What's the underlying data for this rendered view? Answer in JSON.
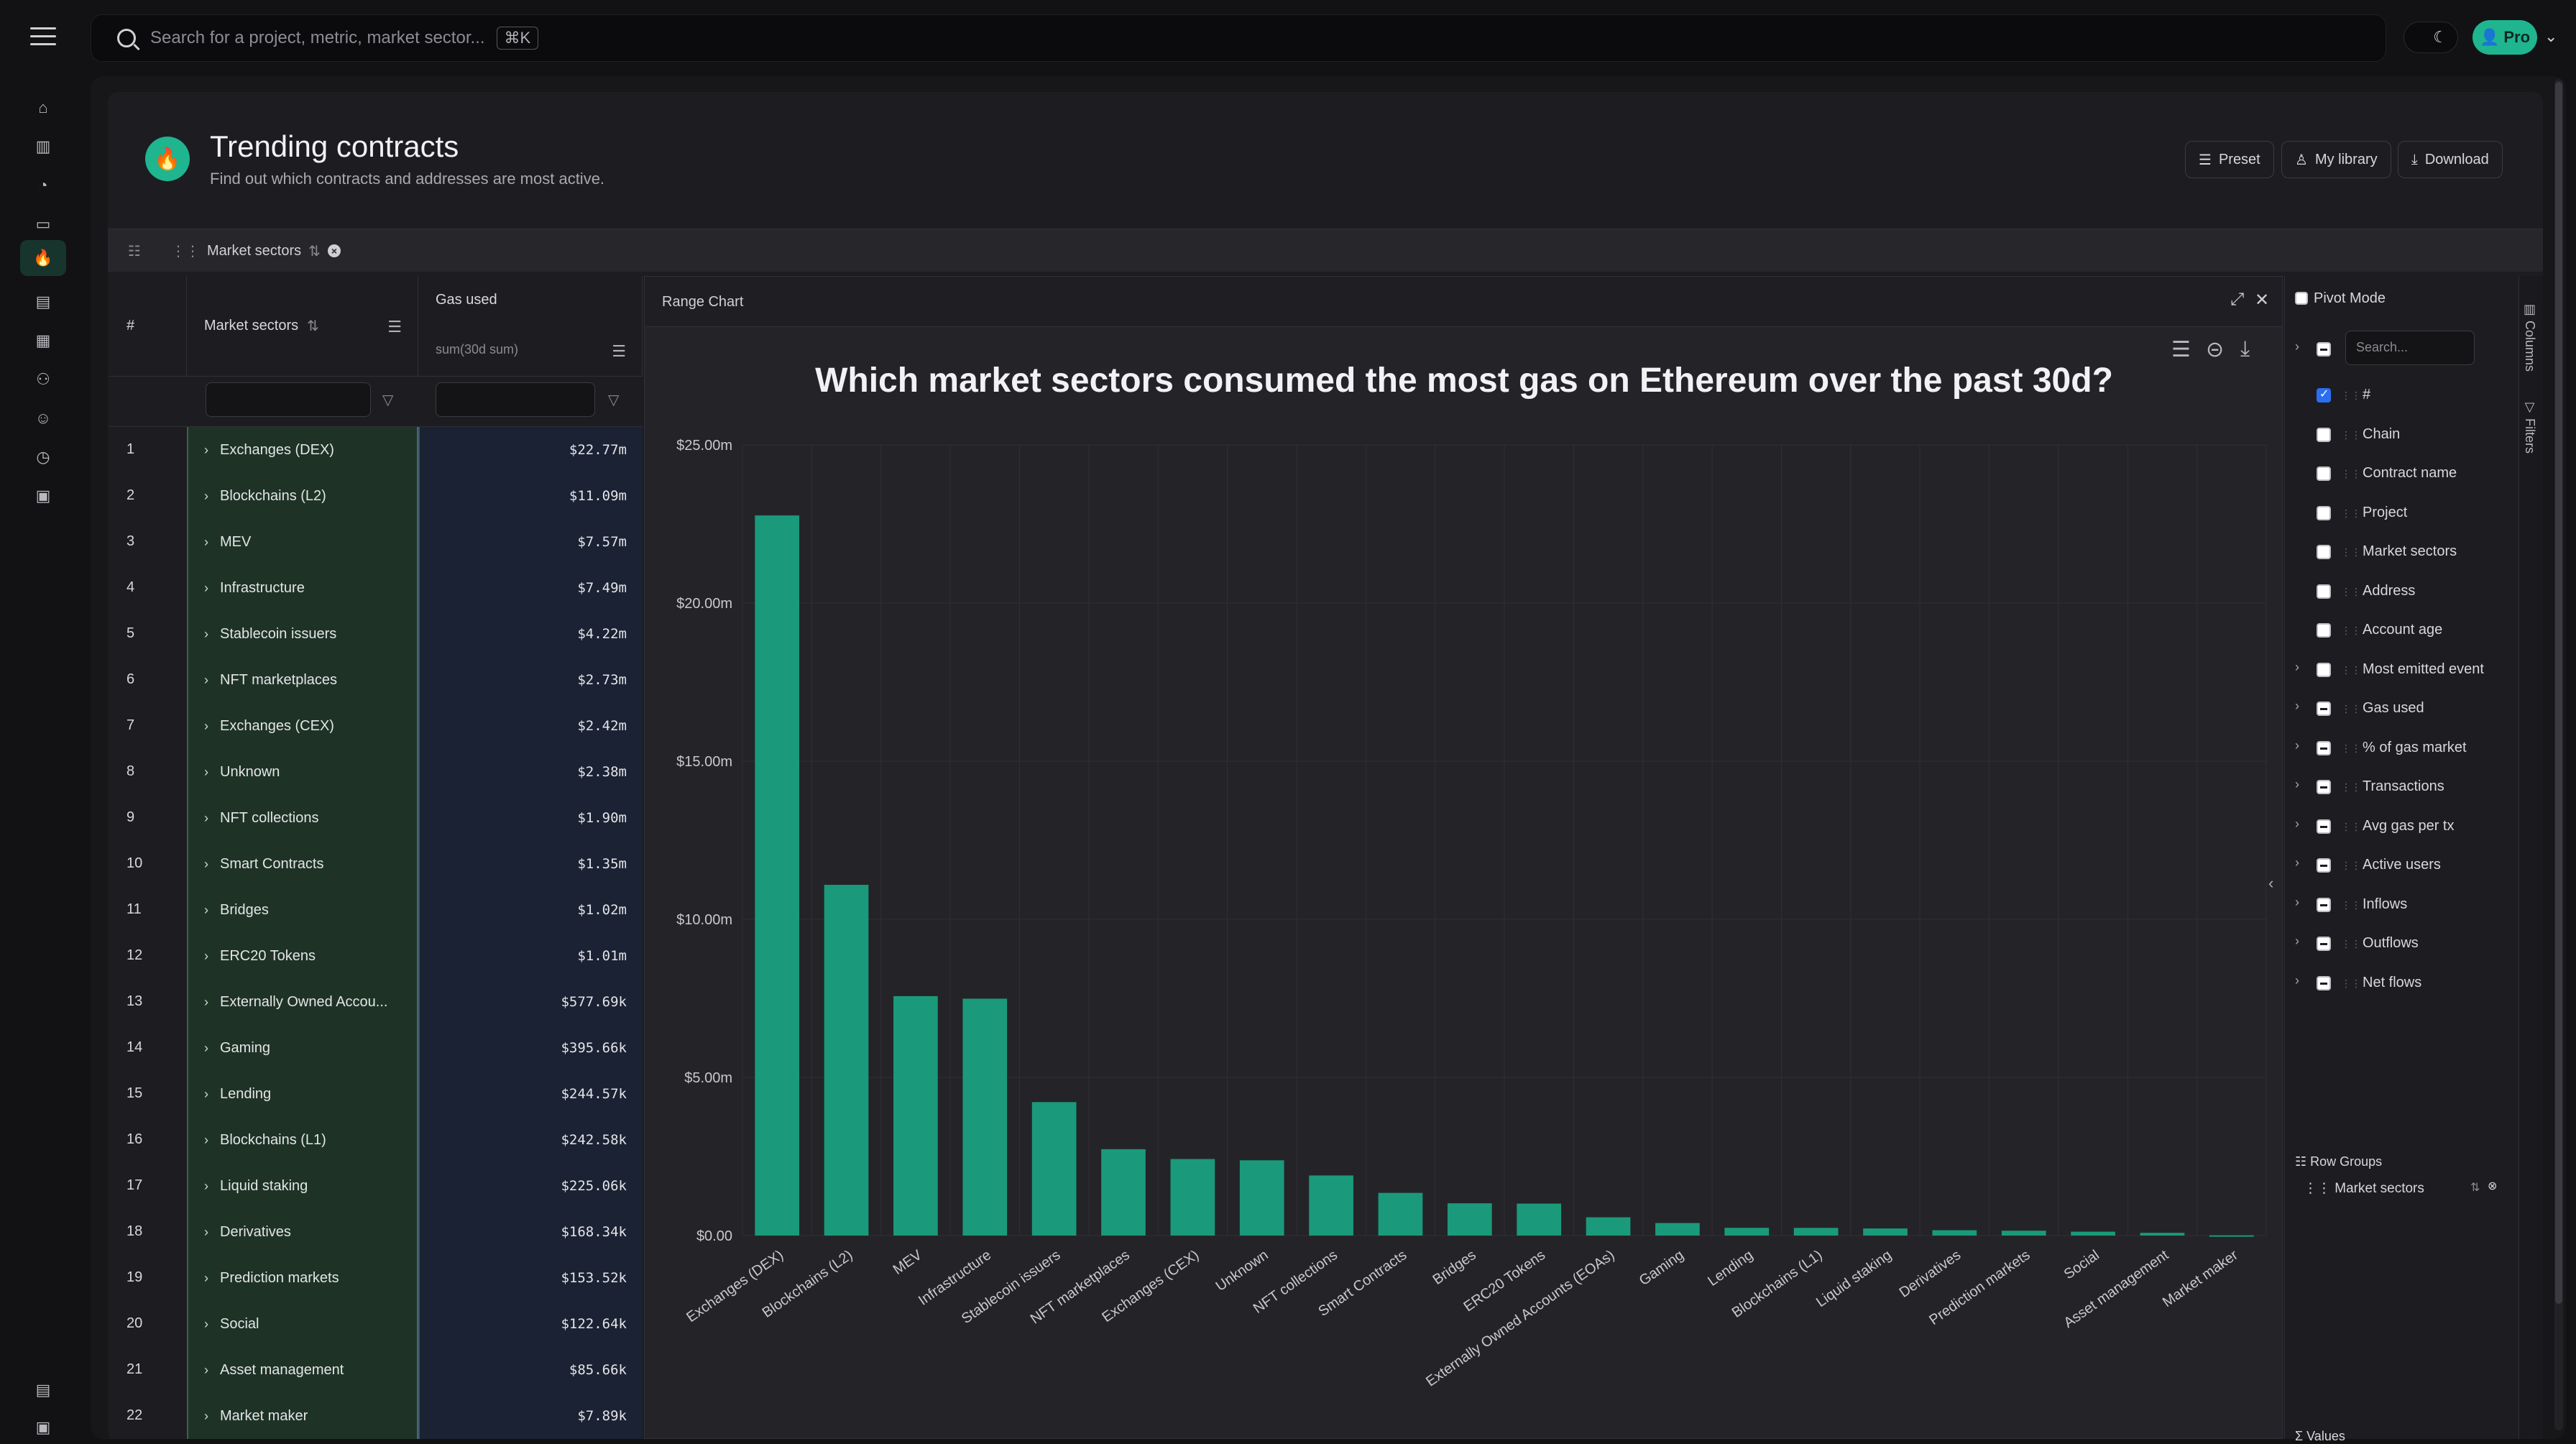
{
  "search": {
    "placeholder": "Search for a project, metric, market sector...",
    "shortcut": "⌘K"
  },
  "user": {
    "plan": "Pro"
  },
  "nav_icons": [
    "home-icon",
    "bar-chart-icon",
    "pie-chart-icon",
    "folder-icon",
    "flame-icon",
    "document-icon",
    "table-icon",
    "users-icon",
    "user-icon",
    "gauge-icon",
    "money-icon"
  ],
  "header": {
    "title": "Trending contracts",
    "subtitle": "Find out which contracts and addresses are most active.",
    "buttons": {
      "preset": "Preset",
      "library": "My library",
      "download": "Download"
    }
  },
  "grouping": {
    "chip": "Market sectors"
  },
  "table": {
    "col_num": "#",
    "col_sector": "Market sectors",
    "col_gas": "Gas used",
    "col_gas_agg": "sum(30d sum)",
    "rows": [
      {
        "n": "1",
        "sector": "Exchanges (DEX)",
        "gas": "$22.77m"
      },
      {
        "n": "2",
        "sector": "Blockchains (L2)",
        "gas": "$11.09m"
      },
      {
        "n": "3",
        "sector": "MEV",
        "gas": "$7.57m"
      },
      {
        "n": "4",
        "sector": "Infrastructure",
        "gas": "$7.49m"
      },
      {
        "n": "5",
        "sector": "Stablecoin issuers",
        "gas": "$4.22m"
      },
      {
        "n": "6",
        "sector": "NFT marketplaces",
        "gas": "$2.73m"
      },
      {
        "n": "7",
        "sector": "Exchanges (CEX)",
        "gas": "$2.42m"
      },
      {
        "n": "8",
        "sector": "Unknown",
        "gas": "$2.38m"
      },
      {
        "n": "9",
        "sector": "NFT collections",
        "gas": "$1.90m"
      },
      {
        "n": "10",
        "sector": "Smart Contracts",
        "gas": "$1.35m"
      },
      {
        "n": "11",
        "sector": "Bridges",
        "gas": "$1.02m"
      },
      {
        "n": "12",
        "sector": "ERC20 Tokens",
        "gas": "$1.01m"
      },
      {
        "n": "13",
        "sector": "Externally Owned Accou...",
        "gas": "$577.69k"
      },
      {
        "n": "14",
        "sector": "Gaming",
        "gas": "$395.66k"
      },
      {
        "n": "15",
        "sector": "Lending",
        "gas": "$244.57k"
      },
      {
        "n": "16",
        "sector": "Blockchains (L1)",
        "gas": "$242.58k"
      },
      {
        "n": "17",
        "sector": "Liquid staking",
        "gas": "$225.06k"
      },
      {
        "n": "18",
        "sector": "Derivatives",
        "gas": "$168.34k"
      },
      {
        "n": "19",
        "sector": "Prediction markets",
        "gas": "$153.52k"
      },
      {
        "n": "20",
        "sector": "Social",
        "gas": "$122.64k"
      },
      {
        "n": "21",
        "sector": "Asset management",
        "gas": "$85.66k"
      },
      {
        "n": "22",
        "sector": "Market maker",
        "gas": "$7.89k"
      }
    ]
  },
  "chart_panel": {
    "label": "Range Chart"
  },
  "chart_data": {
    "type": "bar",
    "title": "Which market sectors consumed the most gas on Ethereum over the past 30d?",
    "categories": [
      "Exchanges (DEX)",
      "Blockchains (L2)",
      "MEV",
      "Infrastructure",
      "Stablecoin issuers",
      "NFT marketplaces",
      "Exchanges (CEX)",
      "Unknown",
      "NFT collections",
      "Smart Contracts",
      "Bridges",
      "ERC20 Tokens",
      "Externally Owned Accounts (EOAs)",
      "Gaming",
      "Lending",
      "Blockchains (L1)",
      "Liquid staking",
      "Derivatives",
      "Prediction markets",
      "Social",
      "Asset management",
      "Market maker"
    ],
    "values": [
      22.77,
      11.09,
      7.57,
      7.49,
      4.22,
      2.73,
      2.42,
      2.38,
      1.9,
      1.35,
      1.02,
      1.01,
      0.57769,
      0.39566,
      0.24457,
      0.24258,
      0.22506,
      0.16834,
      0.15352,
      0.12264,
      0.08566,
      0.00789
    ],
    "ylim": [
      0,
      25
    ],
    "yticks": [
      "$0.00",
      "$5.00m",
      "$10.00m",
      "$15.00m",
      "$20.00m",
      "$25.00m"
    ],
    "grid": true,
    "color": "#1a9a7b"
  },
  "sidebar": {
    "pivot_mode": "Pivot Mode",
    "search_placeholder": "Search...",
    "columns": [
      {
        "label": "#",
        "state": "checked",
        "expandable": false
      },
      {
        "label": "Chain",
        "state": "unchecked",
        "expandable": false
      },
      {
        "label": "Contract name",
        "state": "unchecked",
        "expandable": false
      },
      {
        "label": "Project",
        "state": "unchecked",
        "expandable": false
      },
      {
        "label": "Market sectors",
        "state": "unchecked",
        "expandable": false
      },
      {
        "label": "Address",
        "state": "unchecked",
        "expandable": false
      },
      {
        "label": "Account age",
        "state": "unchecked",
        "expandable": false
      },
      {
        "label": "Most emitted event",
        "state": "unchecked",
        "expandable": true
      },
      {
        "label": "Gas used",
        "state": "indeterminate",
        "expandable": true
      },
      {
        "label": "% of gas market",
        "state": "indeterminate",
        "expandable": true
      },
      {
        "label": "Transactions",
        "state": "indeterminate",
        "expandable": true
      },
      {
        "label": "Avg gas per tx",
        "state": "indeterminate",
        "expandable": true
      },
      {
        "label": "Active users",
        "state": "indeterminate",
        "expandable": true
      },
      {
        "label": "Inflows",
        "state": "indeterminate",
        "expandable": true
      },
      {
        "label": "Outflows",
        "state": "indeterminate",
        "expandable": true
      },
      {
        "label": "Net flows",
        "state": "indeterminate",
        "expandable": true
      }
    ],
    "row_groups_label": "Row Groups",
    "row_group_item": "Market sectors",
    "values_label": "Values",
    "tab_columns": "Columns",
    "tab_filters": "Filters"
  }
}
